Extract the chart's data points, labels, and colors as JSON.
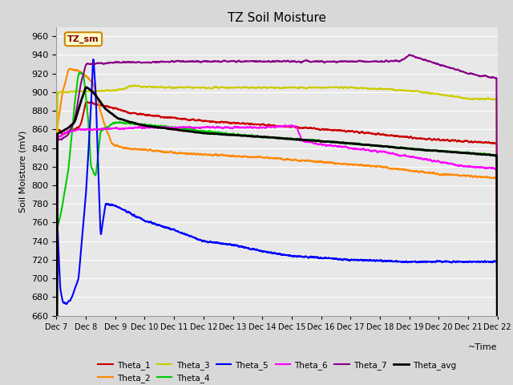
{
  "title": "TZ Soil Moisture",
  "ylabel": "Soil Moisture (mV)",
  "xlabel": "~Time",
  "annotation_label": "TZ_sm",
  "ylim": [
    660,
    970
  ],
  "yticks": [
    660,
    680,
    700,
    720,
    740,
    760,
    780,
    800,
    820,
    840,
    860,
    880,
    900,
    920,
    940,
    960
  ],
  "x_start": 0,
  "x_end": 360,
  "x_labels": [
    "Dec 7",
    "Dec 8",
    "Dec 9",
    "Dec 10",
    "Dec 11",
    "Dec 12",
    "Dec 13",
    "Dec 14",
    "Dec 15",
    "Dec 16",
    "Dec 17",
    "Dec 18",
    "Dec 19",
    "Dec 20",
    "Dec 21",
    "Dec 22"
  ],
  "x_ticks_pos": [
    0,
    24,
    48,
    72,
    96,
    120,
    144,
    168,
    192,
    216,
    240,
    264,
    288,
    312,
    336,
    360
  ],
  "colors": {
    "Theta_1": "#cc0000",
    "Theta_2": "#ff8800",
    "Theta_3": "#cccc00",
    "Theta_4": "#00cc00",
    "Theta_5": "#0000ff",
    "Theta_6": "#ff00ff",
    "Theta_7": "#880088",
    "Theta_avg": "#000000"
  },
  "background_color": "#d8d8d8",
  "plot_bg": "#e8e8e8",
  "grid_color": "#ffffff",
  "linewidth": 1.5
}
